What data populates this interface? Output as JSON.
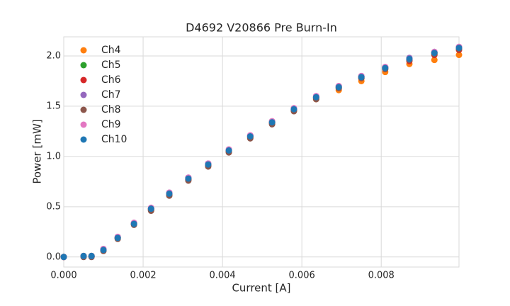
{
  "chart_data": {
    "type": "scatter",
    "title": "D4692 V20866 Pre Burn-In",
    "x_label": "Current [A]",
    "y_label": "Power [mW]",
    "x": [
      0,
      0.0005,
      0.0007,
      0.001,
      0.00136,
      0.00177,
      0.0022,
      0.00266,
      0.00314,
      0.00364,
      0.00416,
      0.0047,
      0.00525,
      0.0058,
      0.00636,
      0.00693,
      0.0075,
      0.0081,
      0.00871,
      0.00934,
      0.00996
    ],
    "series": [
      {
        "name": "Ch4",
        "color": "#ff7f0e",
        "values": [
          0,
          0.01,
          0.01,
          0.07,
          0.19,
          0.33,
          0.47,
          0.62,
          0.77,
          0.91,
          1.05,
          1.19,
          1.33,
          1.46,
          1.57,
          1.66,
          1.75,
          1.84,
          1.92,
          1.96,
          2.01
        ]
      },
      {
        "name": "Ch5",
        "color": "#2ca02c",
        "values": [
          0,
          0.01,
          0.01,
          0.07,
          0.19,
          0.33,
          0.48,
          0.63,
          0.78,
          0.92,
          1.06,
          1.2,
          1.34,
          1.47,
          1.59,
          1.69,
          1.79,
          1.88,
          1.96,
          2.03,
          2.08
        ]
      },
      {
        "name": "Ch6",
        "color": "#d62728",
        "values": [
          0,
          0.01,
          0.01,
          0.07,
          0.19,
          0.33,
          0.47,
          0.62,
          0.77,
          0.91,
          1.05,
          1.19,
          1.33,
          1.46,
          1.58,
          1.68,
          1.78,
          1.87,
          1.95,
          2.01,
          2.06
        ]
      },
      {
        "name": "Ch7",
        "color": "#9467bd",
        "values": [
          0,
          0.01,
          0.01,
          0.08,
          0.2,
          0.34,
          0.48,
          0.64,
          0.79,
          0.93,
          1.07,
          1.21,
          1.35,
          1.48,
          1.6,
          1.7,
          1.8,
          1.89,
          1.98,
          2.04,
          2.09
        ]
      },
      {
        "name": "Ch8",
        "color": "#8c564b",
        "values": [
          0,
          0,
          0,
          0.06,
          0.18,
          0.32,
          0.46,
          0.61,
          0.76,
          0.9,
          1.04,
          1.18,
          1.32,
          1.45,
          1.57,
          1.68,
          1.78,
          1.87,
          1.96,
          2.02,
          2.07
        ]
      },
      {
        "name": "Ch9",
        "color": "#e377c2",
        "values": [
          0,
          0.01,
          0.01,
          0.08,
          0.2,
          0.34,
          0.49,
          0.64,
          0.79,
          0.93,
          1.07,
          1.21,
          1.35,
          1.48,
          1.6,
          1.7,
          1.8,
          1.89,
          1.97,
          2.04,
          2.09
        ]
      },
      {
        "name": "Ch10",
        "color": "#1f77b4",
        "values": [
          0,
          0.01,
          0.01,
          0.07,
          0.19,
          0.33,
          0.48,
          0.63,
          0.78,
          0.92,
          1.06,
          1.2,
          1.34,
          1.47,
          1.59,
          1.69,
          1.79,
          1.88,
          1.97,
          2.03,
          2.08
        ]
      }
    ],
    "xlim": [
      0,
      0.00996
    ],
    "ylim": [
      -0.1,
      2.19
    ],
    "xticks": [
      {
        "value": 0,
        "label": "0.000"
      },
      {
        "value": 0.002,
        "label": "0.002"
      },
      {
        "value": 0.004,
        "label": "0.004"
      },
      {
        "value": 0.006,
        "label": "0.006"
      },
      {
        "value": 0.008,
        "label": "0.008"
      }
    ],
    "yticks": [
      {
        "value": 0,
        "label": "0.0"
      },
      0.5,
      {
        "value": 1,
        "label": "1.0"
      },
      1.5,
      {
        "value": 2,
        "label": "2.0"
      }
    ],
    "grid": true,
    "legend": "upper-left"
  }
}
